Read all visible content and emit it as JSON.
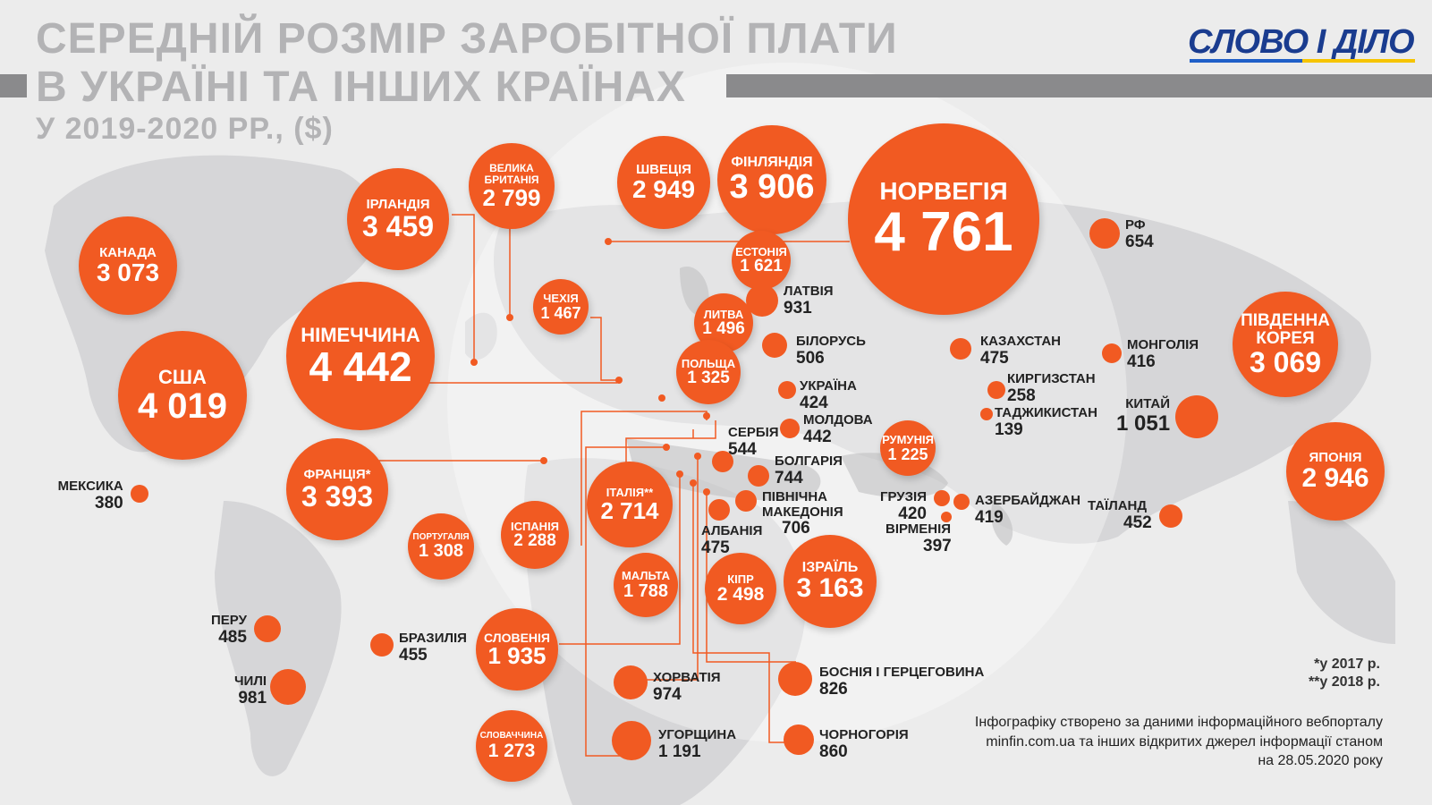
{
  "header": {
    "title_line1": "СЕРЕДНІЙ РОЗМІР ЗАРОБІТНОЇ ПЛАТИ",
    "title_line2": "В УКРАЇНІ ТА ІНШИХ КРАЇНАХ",
    "subtitle": "У 2019-2020 РР., ($)",
    "logo": "СЛОВО І ДІЛО"
  },
  "colors": {
    "accent": "#f15a22",
    "title": "#b3b3b5",
    "logo": "#1a3c8f"
  },
  "bubbles": [
    {
      "name": "НОРВЕГІЯ",
      "value": "4 761"
    },
    {
      "name": "НІМЕЧЧИНА",
      "value": "4 442"
    },
    {
      "name": "США",
      "value": "4 019"
    },
    {
      "name": "ФІНЛЯНДІЯ",
      "value": "3 906"
    },
    {
      "name": "ІРЛАНДІЯ",
      "value": "3 459"
    },
    {
      "name": "ФРАНЦІЯ*",
      "value": "3 393"
    },
    {
      "name": "ІЗРАЇЛЬ",
      "value": "3 163"
    },
    {
      "name": "КАНАДА",
      "value": "3 073"
    },
    {
      "name": "ПІВДЕННА КОРЕЯ",
      "value": "3 069"
    },
    {
      "name": "ШВЕЦІЯ",
      "value": "2 949"
    },
    {
      "name": "ЯПОНІЯ",
      "value": "2 946"
    },
    {
      "name": "ВЕЛИКА БРИТАНІЯ",
      "value": "2 799"
    },
    {
      "name": "ІТАЛІЯ**",
      "value": "2 714"
    },
    {
      "name": "КІПР",
      "value": "2 498"
    },
    {
      "name": "ІСПАНІЯ",
      "value": "2 288"
    },
    {
      "name": "СЛОВЕНІЯ",
      "value": "1 935"
    },
    {
      "name": "МАЛЬТА",
      "value": "1 788"
    },
    {
      "name": "ЕСТОНІЯ",
      "value": "1 621"
    },
    {
      "name": "ЛИТВА",
      "value": "1 496"
    },
    {
      "name": "ЧЕХІЯ",
      "value": "1 467"
    },
    {
      "name": "ПОЛЬЩА",
      "value": "1 325"
    },
    {
      "name": "ПОРТУГАЛІЯ",
      "value": "1 308"
    },
    {
      "name": "СЛОВАЧЧИНА",
      "value": "1 273"
    },
    {
      "name": "РУМУНІЯ",
      "value": "1 225"
    }
  ],
  "small": [
    {
      "name": "КИТАЙ",
      "value": "1 051"
    },
    {
      "name": "ЛАТВІЯ",
      "value": "931"
    },
    {
      "name": "УГОРЩИНА",
      "value": "1 191"
    },
    {
      "name": "ЧИЛІ",
      "value": "981"
    },
    {
      "name": "ХОРВАТІЯ",
      "value": "974"
    },
    {
      "name": "ЧОРНОГОРІЯ",
      "value": "860"
    },
    {
      "name": "БОСНІЯ І ГЕРЦЕГОВИНА",
      "value": "826"
    },
    {
      "name": "БОЛГАРІЯ",
      "value": "744"
    },
    {
      "name": "ПІВНІЧНА МАКЕДОНІЯ",
      "value": "706"
    },
    {
      "name": "РФ",
      "value": "654"
    },
    {
      "name": "СЕРБІЯ",
      "value": "544"
    },
    {
      "name": "БІЛОРУСЬ",
      "value": "506"
    },
    {
      "name": "ПЕРУ",
      "value": "485"
    },
    {
      "name": "АЛБАНІЯ",
      "value": "475"
    },
    {
      "name": "КАЗАХСТАН",
      "value": "475"
    },
    {
      "name": "БРАЗИЛІЯ",
      "value": "455"
    },
    {
      "name": "ТАЇЛАНД",
      "value": "452"
    },
    {
      "name": "МОЛДОВА",
      "value": "442"
    },
    {
      "name": "УКРАЇНА",
      "value": "424"
    },
    {
      "name": "ГРУЗІЯ",
      "value": "420"
    },
    {
      "name": "АЗЕРБАЙДЖАН",
      "value": "419"
    },
    {
      "name": "МОНГОЛІЯ",
      "value": "416"
    },
    {
      "name": "ВІРМЕНІЯ",
      "value": "397"
    },
    {
      "name": "МЕКСИКА",
      "value": "380"
    },
    {
      "name": "КИРГИЗСТАН",
      "value": "258"
    },
    {
      "name": "ТАДЖИКИСТАН",
      "value": "139"
    }
  ],
  "notes": {
    "n2017": "*у 2017 р.",
    "n2018": "**у 2018 р."
  },
  "credits": "Інфографіку створено за даними інформаційного вебпорталу minfin.com.ua та інших відкритих джерел інформації станом на 28.05.2020 року"
}
